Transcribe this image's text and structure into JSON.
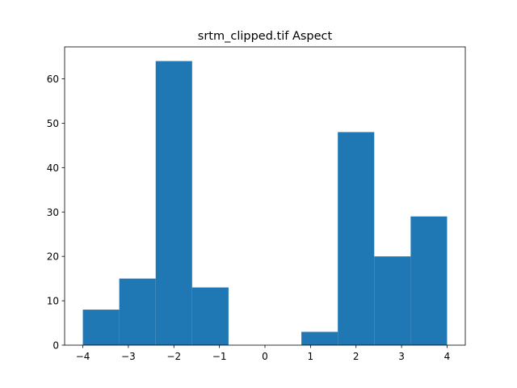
{
  "chart_data": {
    "type": "bar",
    "subtype": "histogram",
    "title": "srtm_clipped.tif Aspect",
    "xlabel": "",
    "ylabel": "",
    "bins": [
      {
        "x0": -4.0,
        "x1": -3.2,
        "count": 8
      },
      {
        "x0": -3.2,
        "x1": -2.4,
        "count": 15
      },
      {
        "x0": -2.4,
        "x1": -1.6,
        "count": 64
      },
      {
        "x0": -1.6,
        "x1": -0.8,
        "count": 13
      },
      {
        "x0": -0.8,
        "x1": 0.0,
        "count": 0
      },
      {
        "x0": 0.0,
        "x1": 0.8,
        "count": 0
      },
      {
        "x0": 0.8,
        "x1": 1.6,
        "count": 3
      },
      {
        "x0": 1.6,
        "x1": 2.4,
        "count": 48
      },
      {
        "x0": 2.4,
        "x1": 3.2,
        "count": 20
      },
      {
        "x0": 3.2,
        "x1": 4.0,
        "count": 29
      }
    ],
    "xlim": [
      -4.4,
      4.4
    ],
    "ylim": [
      0,
      67.2
    ],
    "xticks": [
      -4,
      -3,
      -2,
      -1,
      0,
      1,
      2,
      3,
      4
    ],
    "xtick_labels": [
      "−4",
      "−3",
      "−2",
      "−1",
      "0",
      "1",
      "2",
      "3",
      "4"
    ],
    "yticks": [
      0,
      10,
      20,
      30,
      40,
      50,
      60
    ],
    "ytick_labels": [
      "0",
      "10",
      "20",
      "30",
      "40",
      "50",
      "60"
    ],
    "bar_color": "#1f77b4",
    "grid": false,
    "legend": "none"
  }
}
